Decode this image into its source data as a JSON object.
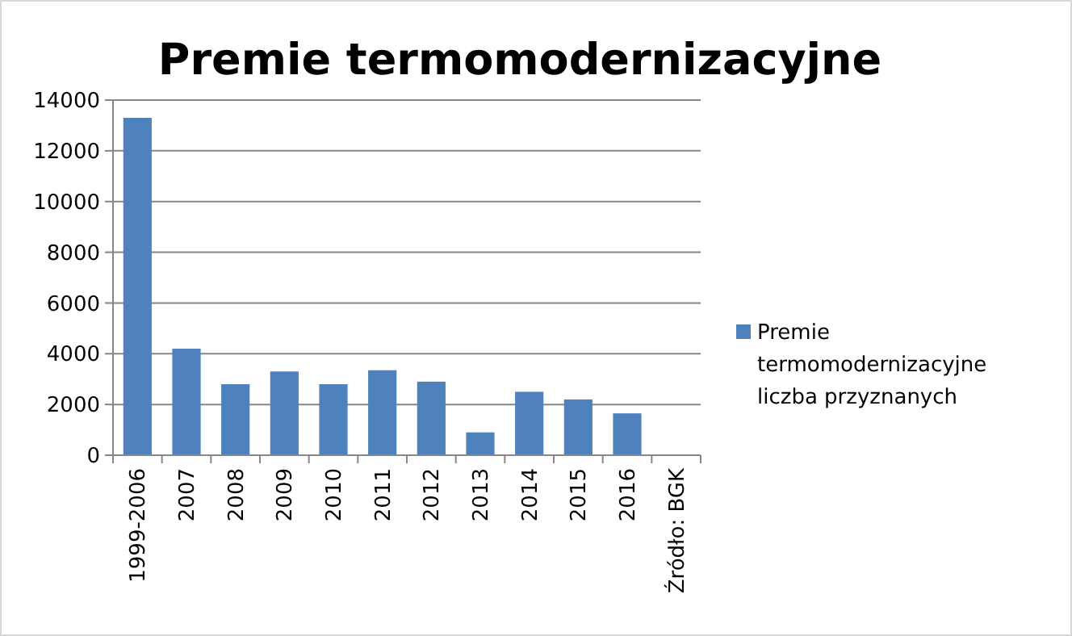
{
  "chart_data": {
    "type": "bar",
    "title": "Premie termomodernizacyjne",
    "categories": [
      "1999-2006",
      "2007",
      "2008",
      "2009",
      "2010",
      "2011",
      "2012",
      "2013",
      "2014",
      "2015",
      "2016",
      "Źródło: BGK"
    ],
    "series": [
      {
        "name": "Premie termomodernizacyjne liczba przyznanych",
        "color": "#4f81bd",
        "values": [
          13300,
          4200,
          2800,
          3300,
          2800,
          3350,
          2900,
          900,
          2500,
          2200,
          1650,
          null
        ]
      }
    ],
    "ylim": [
      0,
      14000
    ],
    "yticks": [
      0,
      2000,
      4000,
      6000,
      8000,
      10000,
      12000,
      14000
    ],
    "grid": "y",
    "legend": "right"
  }
}
